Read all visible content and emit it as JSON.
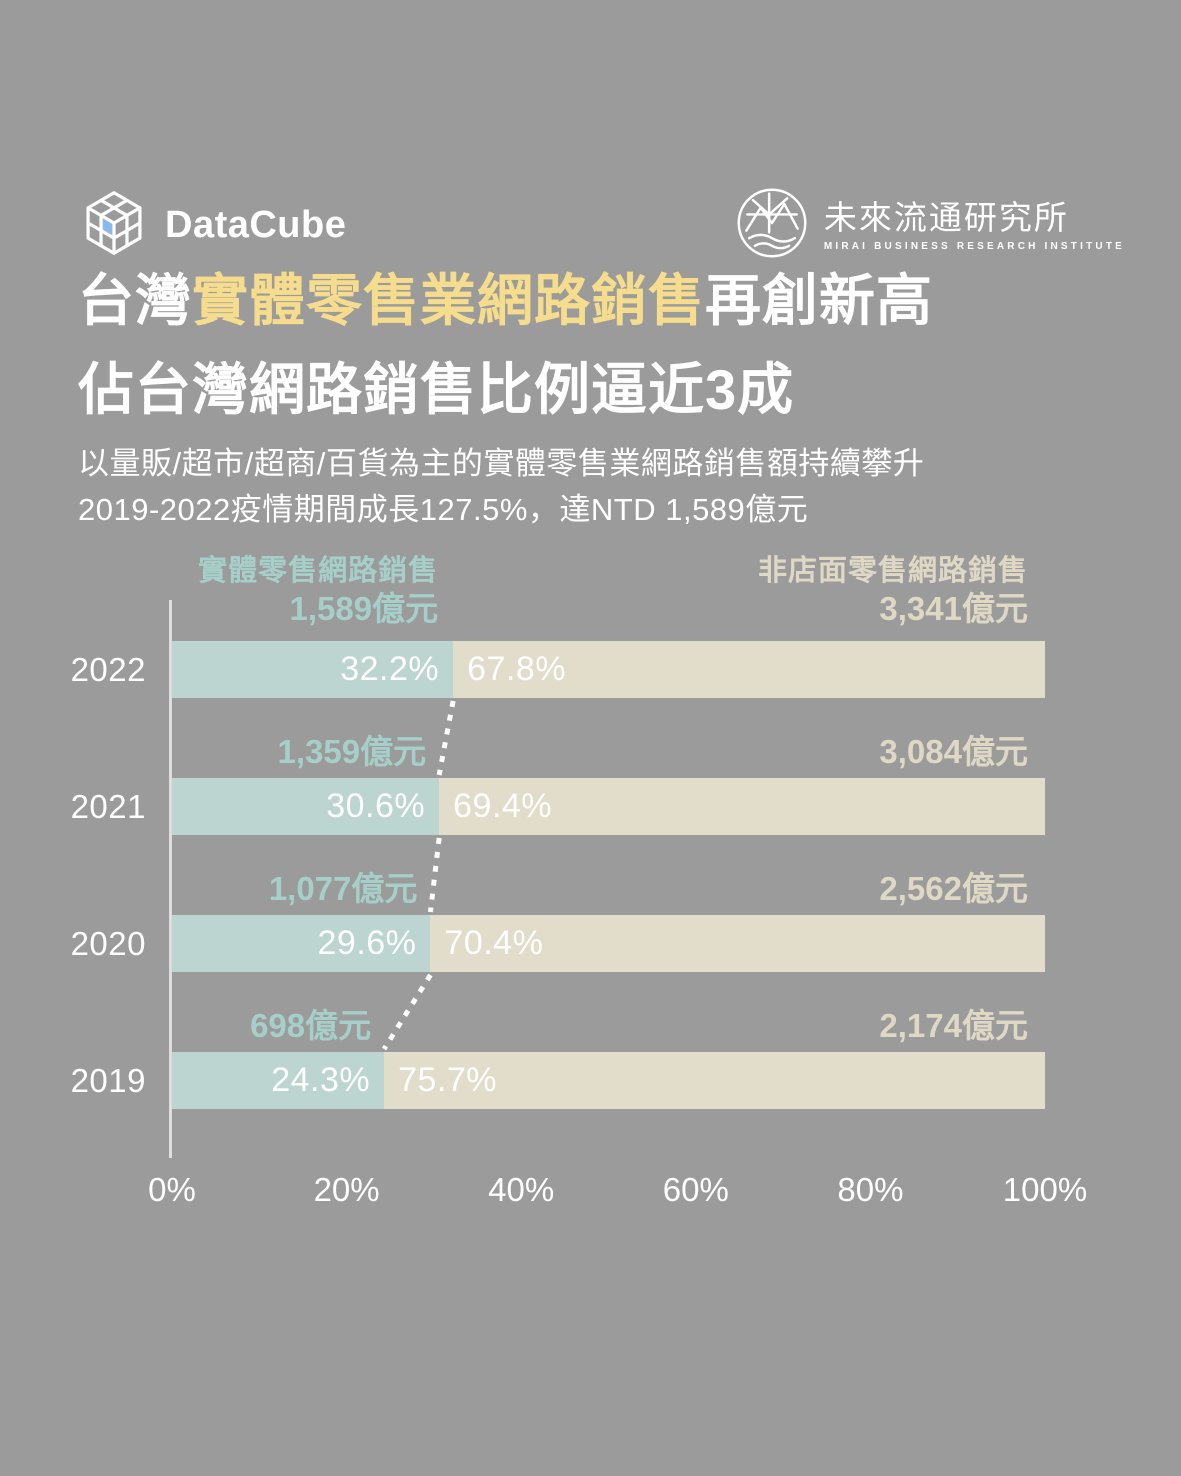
{
  "page": {
    "background": "#9b9b9b"
  },
  "header": {
    "brand": {
      "name": "DataCube"
    },
    "institute": {
      "name": "未來流通研究所",
      "tagline": "MIRAI BUSINESS RESEARCH INSTITUTE"
    }
  },
  "title": {
    "line1_prefix": "台灣",
    "line1_highlight": "實體零售業網路銷售",
    "line1_suffix": "再創新高",
    "line2": "佔台灣網路銷售比例逼近3成",
    "highlight_color": "#f6dd8e"
  },
  "subtitle": {
    "line1": "以量販/超市/超商/百貨為主的實體零售業網路銷售額持續攀升",
    "line2": "2019-2022疫情期間成長127.5%，達NTD 1,589億元"
  },
  "chart_data": {
    "type": "bar",
    "orientation": "horizontal",
    "stacked": true,
    "unit": "NTD 億元",
    "xlim": [
      0,
      100
    ],
    "x_ticks": [
      "0%",
      "20%",
      "40%",
      "60%",
      "80%",
      "100%"
    ],
    "legend": {
      "physical_label": "實體零售網路銷售",
      "nonstore_label": "非店面零售網路銷售",
      "position": "top"
    },
    "categories": [
      "2022",
      "2021",
      "2020",
      "2019"
    ],
    "series": [
      {
        "name": "實體零售網路銷售",
        "values_pct": [
          32.2,
          30.6,
          29.6,
          24.3
        ],
        "values_ntd_100m": [
          1589,
          1359,
          1077,
          698
        ]
      },
      {
        "name": "非店面零售網路銷售",
        "values_pct": [
          67.8,
          69.4,
          70.4,
          75.7
        ],
        "values_ntd_100m": [
          3341,
          3084,
          2562,
          2174
        ]
      }
    ],
    "rows": [
      {
        "year": "2022",
        "physical_pct": 32.2,
        "physical_pct_label": "32.2%",
        "nonstore_pct_label": "67.8%",
        "physical_value": "1,589億元",
        "nonstore_value": "3,341億元"
      },
      {
        "year": "2021",
        "physical_pct": 30.6,
        "physical_pct_label": "30.6%",
        "nonstore_pct_label": "69.4%",
        "physical_value": "1,359億元",
        "nonstore_value": "3,084億元"
      },
      {
        "year": "2020",
        "physical_pct": 29.6,
        "physical_pct_label": "29.6%",
        "nonstore_pct_label": "70.4%",
        "physical_value": "1,077億元",
        "nonstore_value": "2,562億元"
      },
      {
        "year": "2019",
        "physical_pct": 24.3,
        "physical_pct_label": "24.3%",
        "nonstore_pct_label": "75.7%",
        "physical_value": "698億元",
        "nonstore_value": "2,174億元"
      }
    ],
    "colors": {
      "physical_bar": "#bcd5d1",
      "nonstore_bar": "#e2dcca",
      "physical_text": "#a6cfc9",
      "nonstore_text": "#ded8c5",
      "bar_text": "#ffffff",
      "trend_line": "#ffffff",
      "cube_face_blue": "#8ab9ea"
    }
  }
}
